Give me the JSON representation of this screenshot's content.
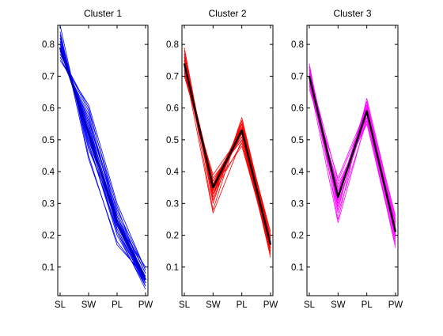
{
  "figure": {
    "background": "#ffffff"
  },
  "chart_data": [
    {
      "type": "line",
      "title": "Cluster 1",
      "categories": [
        "SL",
        "SW",
        "PL",
        "PW"
      ],
      "ylim": [
        0.01,
        0.86
      ],
      "yticks": [
        0.1,
        0.2,
        0.3,
        0.4,
        0.5,
        0.6,
        0.7,
        0.8
      ],
      "grid": false,
      "member_color": "#0000ff",
      "centroid_color": "#0000aa",
      "centroid": [
        0.79,
        0.52,
        0.24,
        0.06
      ],
      "members": [
        [
          0.76,
          0.58,
          0.26,
          0.05
        ],
        [
          0.78,
          0.55,
          0.24,
          0.04
        ],
        [
          0.8,
          0.52,
          0.25,
          0.06
        ],
        [
          0.82,
          0.5,
          0.23,
          0.07
        ],
        [
          0.77,
          0.6,
          0.27,
          0.08
        ],
        [
          0.79,
          0.54,
          0.22,
          0.05
        ],
        [
          0.81,
          0.49,
          0.2,
          0.04
        ],
        [
          0.83,
          0.47,
          0.26,
          0.06
        ],
        [
          0.78,
          0.56,
          0.28,
          0.09
        ],
        [
          0.8,
          0.51,
          0.21,
          0.03
        ],
        [
          0.79,
          0.53,
          0.23,
          0.05
        ],
        [
          0.76,
          0.57,
          0.25,
          0.07
        ],
        [
          0.82,
          0.48,
          0.22,
          0.04
        ],
        [
          0.84,
          0.44,
          0.18,
          0.06
        ],
        [
          0.78,
          0.55,
          0.24,
          0.1
        ],
        [
          0.8,
          0.5,
          0.26,
          0.08
        ],
        [
          0.77,
          0.59,
          0.29,
          0.05
        ],
        [
          0.81,
          0.52,
          0.23,
          0.06
        ],
        [
          0.79,
          0.54,
          0.25,
          0.04
        ],
        [
          0.83,
          0.49,
          0.21,
          0.05
        ],
        [
          0.86,
          0.45,
          0.17,
          0.07
        ],
        [
          0.75,
          0.61,
          0.3,
          0.09
        ],
        [
          0.8,
          0.53,
          0.24,
          0.05
        ],
        [
          0.78,
          0.56,
          0.26,
          0.06
        ]
      ]
    },
    {
      "type": "line",
      "title": "Cluster 2",
      "categories": [
        "SL",
        "SW",
        "PL",
        "PW"
      ],
      "ylim": [
        0.01,
        0.86
      ],
      "yticks": [
        0.1,
        0.2,
        0.3,
        0.4,
        0.5,
        0.6,
        0.7,
        0.8
      ],
      "grid": false,
      "member_color": "#ff0000",
      "centroid_color": "#000000",
      "centroid": [
        0.74,
        0.35,
        0.53,
        0.17
      ],
      "members": [
        [
          0.72,
          0.34,
          0.52,
          0.16
        ],
        [
          0.74,
          0.36,
          0.54,
          0.18
        ],
        [
          0.76,
          0.33,
          0.55,
          0.19
        ],
        [
          0.73,
          0.37,
          0.51,
          0.15
        ],
        [
          0.75,
          0.35,
          0.53,
          0.17
        ],
        [
          0.71,
          0.38,
          0.5,
          0.14
        ],
        [
          0.77,
          0.32,
          0.56,
          0.2
        ],
        [
          0.74,
          0.34,
          0.52,
          0.16
        ],
        [
          0.72,
          0.36,
          0.54,
          0.18
        ],
        [
          0.78,
          0.3,
          0.57,
          0.19
        ],
        [
          0.73,
          0.33,
          0.49,
          0.15
        ],
        [
          0.75,
          0.37,
          0.53,
          0.17
        ],
        [
          0.7,
          0.39,
          0.52,
          0.13
        ],
        [
          0.76,
          0.28,
          0.56,
          0.18
        ],
        [
          0.74,
          0.35,
          0.48,
          0.16
        ],
        [
          0.79,
          0.31,
          0.55,
          0.21
        ],
        [
          0.72,
          0.34,
          0.54,
          0.17
        ],
        [
          0.75,
          0.36,
          0.51,
          0.15
        ],
        [
          0.73,
          0.27,
          0.5,
          0.16
        ],
        [
          0.74,
          0.35,
          0.55,
          0.18
        ],
        [
          0.76,
          0.33,
          0.53,
          0.14
        ],
        [
          0.71,
          0.37,
          0.52,
          0.17
        ],
        [
          0.77,
          0.34,
          0.54,
          0.19
        ],
        [
          0.75,
          0.36,
          0.53,
          0.16
        ]
      ]
    },
    {
      "type": "line",
      "title": "Cluster 3",
      "categories": [
        "SL",
        "SW",
        "PL",
        "PW"
      ],
      "ylim": [
        0.01,
        0.86
      ],
      "yticks": [
        0.1,
        0.2,
        0.3,
        0.4,
        0.5,
        0.6,
        0.7,
        0.8
      ],
      "grid": false,
      "member_color": "#ff00ff",
      "centroid_color": "#000000",
      "centroid": [
        0.7,
        0.32,
        0.59,
        0.21
      ],
      "members": [
        [
          0.68,
          0.3,
          0.58,
          0.2
        ],
        [
          0.7,
          0.33,
          0.6,
          0.22
        ],
        [
          0.72,
          0.31,
          0.61,
          0.23
        ],
        [
          0.69,
          0.34,
          0.57,
          0.19
        ],
        [
          0.71,
          0.29,
          0.59,
          0.21
        ],
        [
          0.67,
          0.35,
          0.56,
          0.18
        ],
        [
          0.73,
          0.28,
          0.62,
          0.24
        ],
        [
          0.7,
          0.32,
          0.58,
          0.2
        ],
        [
          0.66,
          0.36,
          0.55,
          0.17
        ],
        [
          0.74,
          0.25,
          0.63,
          0.25
        ],
        [
          0.69,
          0.31,
          0.6,
          0.22
        ],
        [
          0.71,
          0.37,
          0.59,
          0.21
        ],
        [
          0.68,
          0.24,
          0.57,
          0.16
        ],
        [
          0.72,
          0.33,
          0.61,
          0.26
        ],
        [
          0.7,
          0.3,
          0.58,
          0.23
        ],
        [
          0.67,
          0.38,
          0.6,
          0.19
        ],
        [
          0.73,
          0.32,
          0.62,
          0.2
        ],
        [
          0.69,
          0.27,
          0.56,
          0.22
        ],
        [
          0.71,
          0.34,
          0.59,
          0.24
        ],
        [
          0.7,
          0.31,
          0.6,
          0.21
        ]
      ]
    }
  ]
}
